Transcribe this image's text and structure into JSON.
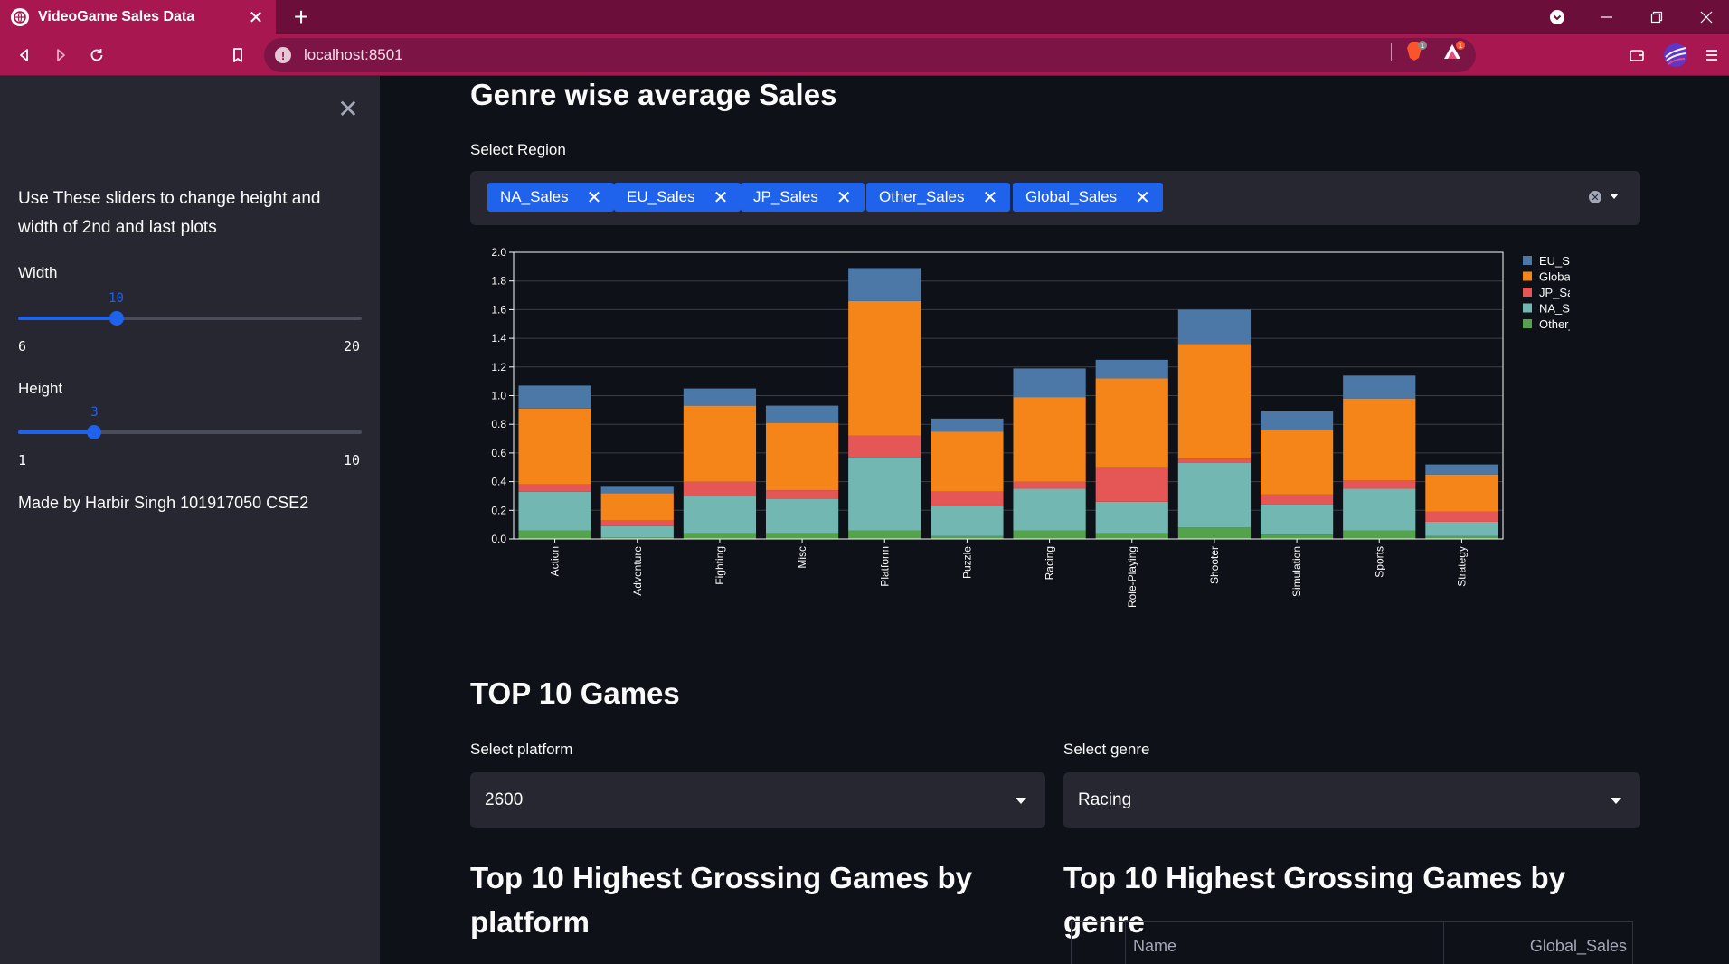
{
  "browser": {
    "tab_title": "VideoGame Sales Data",
    "address": "localhost:8501"
  },
  "sidebar": {
    "description": "Use These sliders to change height and width of 2nd and last plots",
    "width_slider": {
      "label": "Width",
      "value": 10,
      "min": 6,
      "max": 20
    },
    "height_slider": {
      "label": "Height",
      "value": 3,
      "min": 1,
      "max": 10
    },
    "credit": "Made by Harbir Singh 101917050 CSE2"
  },
  "main": {
    "genre_heading": "Genre wise average Sales",
    "region_label": "Select Region",
    "region_chips": [
      "NA_Sales",
      "EU_Sales",
      "JP_Sales",
      "Other_Sales",
      "Global_Sales"
    ],
    "top10_heading": "TOP 10 Games",
    "platform_label": "Select platform",
    "platform_value": "2600",
    "genre_label": "Select genre",
    "genre_value": "Racing",
    "platform_table_heading": "Top 10 Highest Grossing Games by platform",
    "genre_table_heading": "Top 10 Highest Grossing Games by genre",
    "table_columns": [
      "Name",
      "Global_Sales"
    ]
  },
  "colors": {
    "EU_Sales": "#4c78a8",
    "Global_Sales": "#f58518",
    "JP_Sales": "#e45756",
    "NA_Sales": "#72b7b2",
    "Other_Sales": "#54a24b",
    "accent": "#1f62ec"
  },
  "chart_data": {
    "type": "bar",
    "stacked": true,
    "categories": [
      "Action",
      "Adventure",
      "Fighting",
      "Misc",
      "Platform",
      "Puzzle",
      "Racing",
      "Role-Playing",
      "Shooter",
      "Simulation",
      "Sports",
      "Strategy"
    ],
    "series": [
      {
        "name": "Other_Sales",
        "values": [
          0.06,
          0.01,
          0.04,
          0.04,
          0.06,
          0.02,
          0.06,
          0.04,
          0.08,
          0.03,
          0.06,
          0.02
        ]
      },
      {
        "name": "NA_Sales",
        "values": [
          0.27,
          0.08,
          0.26,
          0.24,
          0.51,
          0.21,
          0.29,
          0.22,
          0.45,
          0.21,
          0.29,
          0.1
        ]
      },
      {
        "name": "JP_Sales",
        "values": [
          0.05,
          0.04,
          0.1,
          0.06,
          0.15,
          0.1,
          0.05,
          0.24,
          0.03,
          0.07,
          0.06,
          0.07
        ]
      },
      {
        "name": "Global_Sales",
        "values": [
          0.53,
          0.19,
          0.53,
          0.47,
          0.94,
          0.42,
          0.59,
          0.62,
          0.8,
          0.45,
          0.57,
          0.26
        ]
      },
      {
        "name": "EU_Sales",
        "values": [
          0.16,
          0.05,
          0.12,
          0.12,
          0.23,
          0.09,
          0.2,
          0.13,
          0.24,
          0.13,
          0.16,
          0.07
        ]
      }
    ],
    "legend": [
      "EU_Sales",
      "Global_Sales",
      "JP_Sales",
      "NA_Sales",
      "Other_Sales"
    ],
    "legend_position": "right",
    "ylim": [
      0,
      2.0
    ],
    "yticks": [
      "0.0",
      "0.2",
      "0.4",
      "0.6",
      "0.8",
      "1.0",
      "1.2",
      "1.4",
      "1.6",
      "1.8",
      "2.0"
    ],
    "xlabel": "",
    "ylabel": "",
    "title": "",
    "grid": true
  }
}
